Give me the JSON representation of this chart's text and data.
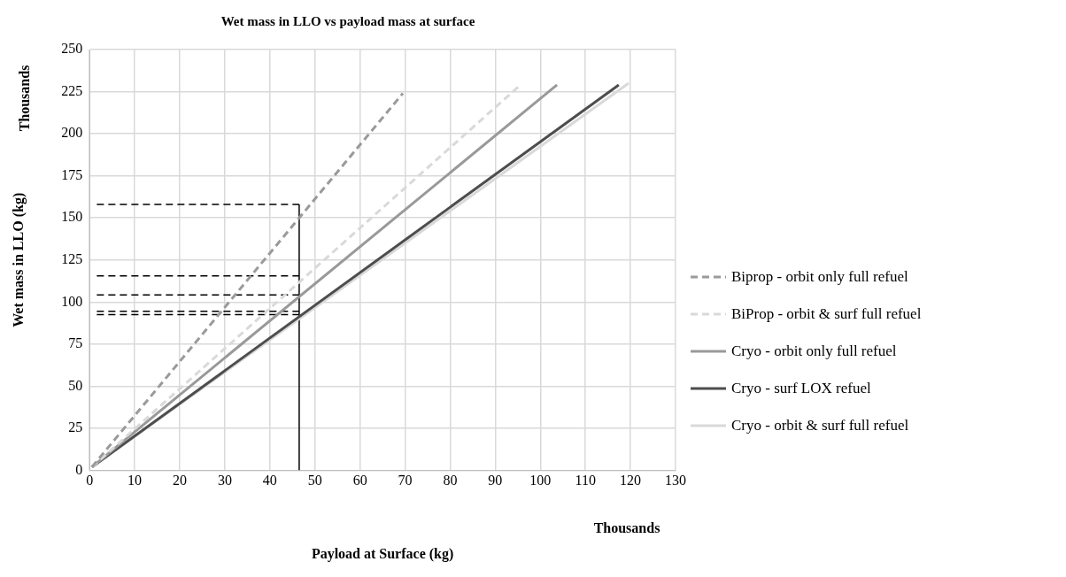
{
  "chart_data": {
    "type": "line",
    "title": "Wet mass in LLO vs payload mass at surface",
    "xlabel": "Payload at Surface (kg)",
    "ylabel": "Wet mass in LLO (kg)",
    "annotations": [
      "Thousands",
      "Thousands"
    ],
    "xlim": [
      0,
      130
    ],
    "xticks": [
      0,
      10,
      20,
      30,
      40,
      50,
      60,
      70,
      80,
      90,
      100,
      110,
      120,
      130
    ],
    "ylim": [
      0,
      250
    ],
    "yticks": [
      0,
      25,
      50,
      75,
      100,
      125,
      150,
      175,
      200,
      225,
      250
    ],
    "grid": true,
    "legend": "right",
    "marker": "none",
    "series": [
      {
        "name": "Biprop - orbit only full refuel",
        "color": "#9a9a9a",
        "line_style": "dashed",
        "x": [
          0.5,
          69.5
        ],
        "values": [
          2,
          224
        ]
      },
      {
        "name": "BiProp - orbit & surf full refuel",
        "color": "#d9d9d9",
        "line_style": "dashed",
        "x": [
          0.5,
          95.6
        ],
        "values": [
          2,
          229
        ]
      },
      {
        "name": "Cryo - orbit only full refuel",
        "color": "#999999",
        "line_style": "solid",
        "x": [
          0.5,
          103.7
        ],
        "values": [
          2,
          229
        ]
      },
      {
        "name": "Cryo - surf LOX refuel",
        "color": "#4d4d4d",
        "line_style": "solid",
        "x": [
          0.5,
          117.4
        ],
        "values": [
          2,
          229
        ]
      },
      {
        "name": "Cryo - orbit & surf full refuel",
        "color": "#d9d9d9",
        "line_style": "solid",
        "x": [
          0.5,
          119.6
        ],
        "values": [
          2,
          230
        ]
      },
      {
        "color": "#000000",
        "line_style": "dashed",
        "x": [
          1.6,
          46.5
        ],
        "values": [
          158,
          158
        ]
      },
      {
        "color": "#000000",
        "line_style": "dashed",
        "x": [
          1.6,
          46.5
        ],
        "values": [
          115.5,
          115.5
        ]
      },
      {
        "color": "#000000",
        "line_style": "dashed",
        "x": [
          1.6,
          46.5
        ],
        "values": [
          104.3,
          104.3
        ]
      },
      {
        "color": "#000000",
        "line_style": "dashed",
        "x": [
          1.6,
          46.5
        ],
        "values": [
          94.6,
          94.6
        ]
      },
      {
        "color": "#000000",
        "line_style": "dashed",
        "x": [
          1.6,
          46.5
        ],
        "values": [
          92.6,
          92.6
        ]
      },
      {
        "color": "#000000",
        "line_style": "solid",
        "x": [
          46.5,
          46.5
        ],
        "values": [
          0,
          158
        ]
      }
    ]
  }
}
